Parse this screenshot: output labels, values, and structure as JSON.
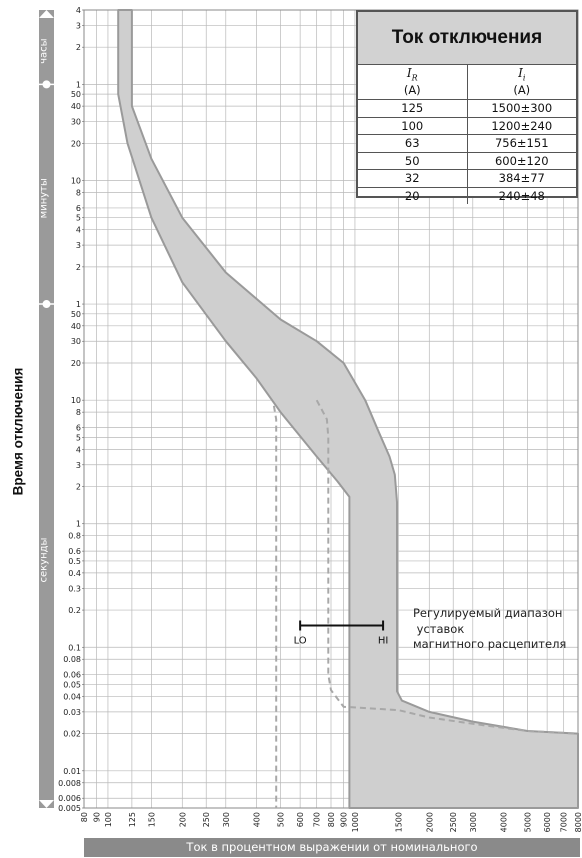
{
  "chart_data": {
    "type": "line",
    "xlabel": "Ток в процентном выражении от номинального",
    "ylabel": "Время отключения",
    "x_scale": "log",
    "y_scale": "log",
    "xlim": [
      80,
      8000
    ],
    "ylim": [
      0.005,
      14400
    ],
    "grid": true,
    "x_ticks": [
      "80",
      "90",
      "100",
      "125",
      "150",
      "200",
      "250",
      "300",
      "400",
      "500",
      "600",
      "700",
      "800",
      "900",
      "1000",
      "1500",
      "2000",
      "2500",
      "3000",
      "4000",
      "5000",
      "6000",
      "7000",
      "8000"
    ],
    "y_ticks": [
      {
        "label": "4",
        "hours": 4
      },
      {
        "label": "3",
        "hours": 3
      },
      {
        "label": "2",
        "hours": 2
      },
      {
        "label": "1",
        "hours": 1
      },
      {
        "label": "50",
        "minutes": 50
      },
      {
        "label": "40",
        "minutes": 40
      },
      {
        "label": "30",
        "minutes": 30
      },
      {
        "label": "20",
        "minutes": 20
      },
      {
        "label": "10",
        "minutes": 10
      },
      {
        "label": "8",
        "minutes": 8
      },
      {
        "label": "6",
        "minutes": 6
      },
      {
        "label": "5",
        "minutes": 5
      },
      {
        "label": "4",
        "minutes": 4
      },
      {
        "label": "3",
        "minutes": 3
      },
      {
        "label": "2",
        "minutes": 2
      },
      {
        "label": "1",
        "minutes": 1
      },
      {
        "label": "50",
        "seconds": 50
      },
      {
        "label": "40",
        "seconds": 40
      },
      {
        "label": "30",
        "seconds": 30
      },
      {
        "label": "20",
        "seconds": 20
      },
      {
        "label": "10",
        "seconds": 10
      },
      {
        "label": "8",
        "seconds": 8
      },
      {
        "label": "6",
        "seconds": 6
      },
      {
        "label": "5",
        "seconds": 5
      },
      {
        "label": "4",
        "seconds": 4
      },
      {
        "label": "3",
        "seconds": 3
      },
      {
        "label": "2",
        "seconds": 2
      },
      {
        "label": "1",
        "seconds": 1
      },
      {
        "label": "0.8",
        "seconds": 0.8
      },
      {
        "label": "0.6",
        "seconds": 0.6
      },
      {
        "label": "0.5",
        "seconds": 0.5
      },
      {
        "label": "0.4",
        "seconds": 0.4
      },
      {
        "label": "0.3",
        "seconds": 0.3
      },
      {
        "label": "0.2",
        "seconds": 0.2
      },
      {
        "label": "0.1",
        "seconds": 0.1
      },
      {
        "label": "0.08",
        "seconds": 0.08
      },
      {
        "label": "0.06",
        "seconds": 0.06
      },
      {
        "label": "0.05",
        "seconds": 0.05
      },
      {
        "label": "0.04",
        "seconds": 0.04
      },
      {
        "label": "0.03",
        "seconds": 0.03
      },
      {
        "label": "0.02",
        "seconds": 0.02
      },
      {
        "label": "0.01",
        "seconds": 0.01
      },
      {
        "label": "0.008",
        "seconds": 0.008
      },
      {
        "label": "0.006",
        "seconds": 0.006
      },
      {
        "label": "0.005",
        "seconds": 0.005
      }
    ],
    "time_sections": [
      {
        "label": "часы",
        "from_seconds": 3600,
        "to_seconds": 14400
      },
      {
        "label": "минуты",
        "from_seconds": 60,
        "to_seconds": 3600
      },
      {
        "label": "секунды",
        "from_seconds": 0.005,
        "to_seconds": 60
      }
    ],
    "band": {
      "upper": [
        [
          125,
          14400
        ],
        [
          125,
          2400
        ],
        [
          150,
          900
        ],
        [
          200,
          300
        ],
        [
          300,
          108
        ],
        [
          500,
          45
        ],
        [
          700,
          30
        ],
        [
          900,
          20
        ],
        [
          1100,
          10
        ],
        [
          1250,
          5.5
        ],
        [
          1380,
          3.5
        ],
        [
          1450,
          2.5
        ],
        [
          1480,
          1.5
        ],
        [
          1480,
          0.044
        ],
        [
          1550,
          0.037
        ],
        [
          2000,
          0.03
        ],
        [
          3000,
          0.025
        ],
        [
          5000,
          0.021
        ],
        [
          8000,
          0.02
        ]
      ],
      "lower": [
        [
          110,
          14400
        ],
        [
          110,
          3000
        ],
        [
          120,
          1200
        ],
        [
          150,
          300
        ],
        [
          200,
          90
        ],
        [
          300,
          30
        ],
        [
          400,
          15
        ],
        [
          500,
          8
        ],
        [
          700,
          3.5
        ],
        [
          850,
          2.2
        ],
        [
          950,
          1.65
        ],
        [
          950,
          0.005
        ],
        [
          8000,
          0.005
        ]
      ]
    },
    "adjustable_curves": [
      {
        "name": "LO",
        "points": [
          [
            470,
            9
          ],
          [
            480,
            7
          ],
          [
            480,
            0.005
          ]
        ]
      },
      {
        "name": "HI",
        "points": [
          [
            700,
            10
          ],
          [
            770,
            7
          ],
          [
            780,
            5
          ],
          [
            780,
            0.06
          ],
          [
            800,
            0.045
          ],
          [
            900,
            0.033
          ],
          [
            1500,
            0.031
          ],
          [
            2000,
            0.027
          ],
          [
            3000,
            0.024
          ],
          [
            5000,
            0.021
          ],
          [
            8000,
            0.02
          ]
        ]
      }
    ],
    "range_bar": {
      "lo": 600,
      "hi": 1300,
      "seconds": 0.15,
      "lo_label": "LO",
      "hi_label": "HI"
    },
    "annotation": [
      "Регулируемый диапазон",
      " уставок",
      "магнитного расцепителя"
    ],
    "table": {
      "title": "Ток отключения",
      "headers": [
        {
          "sym": "I",
          "sub": "R",
          "unit": "(A)"
        },
        {
          "sym": "I",
          "sub": "i",
          "unit": "(A)"
        }
      ],
      "rows": [
        [
          "125",
          "1500±300"
        ],
        [
          "100",
          "1200±240"
        ],
        [
          "63",
          "756±151"
        ],
        [
          "50",
          "600±120"
        ],
        [
          "32",
          "384±77"
        ],
        [
          "20",
          "240±48"
        ]
      ]
    },
    "colors": {
      "band_fill": "#cfcfcf",
      "band_stroke": "#9a9a9a",
      "dashed": "#a8a8a8",
      "grid": "#b8b8b8",
      "axis_bar": "#8a8a8a"
    }
  }
}
